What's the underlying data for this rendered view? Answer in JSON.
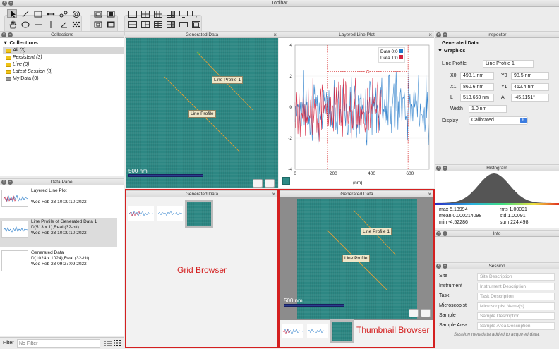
{
  "window": {
    "title": "Toolbar"
  },
  "panels": {
    "collections": "Collections",
    "data_panel": "Data Panel",
    "generated_data": "Generated Data",
    "layered_line_plot": "Layered Line Plot",
    "inspector": "Inspector",
    "histogram": "Histogram",
    "info": "Info",
    "session": "Session"
  },
  "collections": {
    "header": "Collections",
    "items": [
      "All (3)",
      "Persistent (3)",
      "Live (0)",
      "Latest Session (3)"
    ],
    "my_data": "My Data (0)"
  },
  "data_panel": {
    "items": [
      {
        "title": "Layered Line Plot",
        "line2": "",
        "date": "Wed Feb 23 10:09:10 2022"
      },
      {
        "title": "Line Profile of Generated Data 1",
        "line2": "D(513 x 1),Real (32-bit)",
        "date": "Wed Feb 23 10:09:10 2022"
      },
      {
        "title": "Generated Data",
        "line2": "D(1024 x 1024),Real (32-bit)",
        "date": "Wed Feb 23 09:27:09 2022"
      }
    ],
    "filter_label": "Filter",
    "filter_placeholder": "No Filter"
  },
  "image_view": {
    "profile1_label": "Line Profile 1",
    "profile_label": "Line Profile",
    "scale": "500 nm"
  },
  "plot": {
    "legend": [
      "Data 0:0",
      "Data 1:0"
    ],
    "legend_colors": [
      "#1f77c8",
      "#d4213d"
    ],
    "chart_data": {
      "type": "line",
      "xlabel": "(nm)",
      "ylabel": "",
      "xlim": [
        0,
        700
      ],
      "ylim": [
        -4,
        4
      ],
      "xticks": [
        "0",
        "200",
        "400",
        "600"
      ],
      "yticks": [
        "4",
        "2",
        "0",
        "-2",
        "-4"
      ],
      "series": [
        {
          "name": "Data 0:0"
        },
        {
          "name": "Data 1:0"
        }
      ]
    }
  },
  "browsers": {
    "grid_label": "Grid Browser",
    "thumb_label": "Thumbnail Browser"
  },
  "inspector": {
    "title": "Generated Data",
    "section": "Graphics",
    "line_profile_label": "Line Profile",
    "line_profile_value": "Line Profile 1",
    "x0_label": "X0",
    "x0": "498.1 nm",
    "y0_label": "Y0",
    "y0": "98.5 nm",
    "x1_label": "X1",
    "x1": "860.6 nm",
    "y1_label": "Y1",
    "y1": "462.4 nm",
    "l_label": "L",
    "l": "513.663 nm",
    "a_label": "A",
    "a": "-45.1151°",
    "width_label": "Width",
    "width": "1.0 nm",
    "display_label": "Display",
    "display": "Calibrated"
  },
  "histogram": {
    "max": "max 5.13994",
    "rms": "rms 1.00091",
    "mean": "mean 0.000214098",
    "std": "std 1.00091",
    "min": "min -4.52286",
    "sum": "sum 224.498"
  },
  "session": {
    "rows": [
      {
        "label": "Site",
        "placeholder": "Site Description"
      },
      {
        "label": "Instrument",
        "placeholder": "Instrument Description"
      },
      {
        "label": "Task",
        "placeholder": "Task Description"
      },
      {
        "label": "Microscopist",
        "placeholder": "Microscopist Name(s)"
      },
      {
        "label": "Sample",
        "placeholder": "Sample Description"
      },
      {
        "label": "Sample Area",
        "placeholder": "Sample Area Description"
      }
    ],
    "footer": "Session metadata added to acquired data."
  },
  "colors": {
    "accent_red": "#d42020",
    "teal": "#2e8a86"
  }
}
